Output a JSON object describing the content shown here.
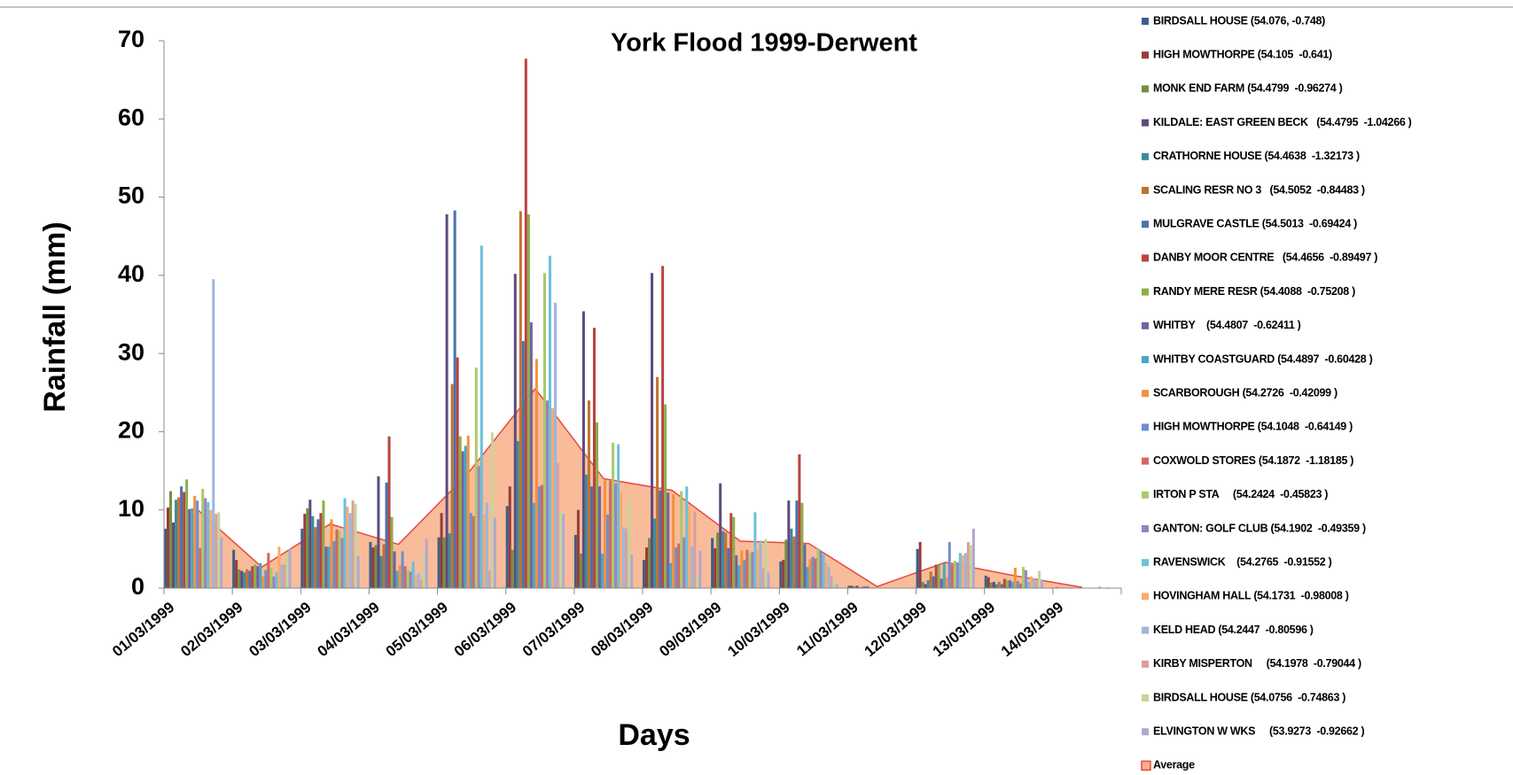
{
  "chart_data": {
    "type": "bar",
    "title": "York Flood 1999-Derwent",
    "x_label": "Days",
    "y_label": "Rainfall (mm)",
    "categories": [
      "01/03/1999",
      "02/03/1999",
      "03/03/1999",
      "04/03/1999",
      "05/03/1999",
      "06/03/1999",
      "07/03/1999",
      "08/03/1999",
      "09/03/1999",
      "10/03/1999",
      "11/03/1999",
      "12/03/1999",
      "13/03/1999",
      "14/03/1999"
    ],
    "ylim": [
      0,
      70
    ],
    "yticks": [
      0,
      10,
      20,
      30,
      40,
      50,
      60,
      70
    ],
    "grid": false,
    "legend": "right",
    "series": [
      {
        "name": "BIRDSALL HOUSE (54.076, -0.748)",
        "color": "#3E5F8A",
        "values": [
          7.6,
          4.9,
          7.6,
          5.9,
          6.5,
          10.5,
          6.8,
          3.6,
          6.4,
          3.4,
          0.3,
          5.0,
          1.6,
          0
        ]
      },
      {
        "name": "HIGH MOWTHORPE (54.105  -0.641)",
        "color": "#963C3A",
        "values": [
          10.3,
          3.6,
          9.5,
          5.2,
          9.6,
          13,
          10,
          5.2,
          5.1,
          3.6,
          0.3,
          5.9,
          1.4,
          0.1
        ]
      },
      {
        "name": "MONK END FARM (54.4799  -0.96274 )",
        "color": "#778F40",
        "values": [
          12.4,
          2.4,
          10.2,
          5.5,
          6.5,
          4.9,
          4.4,
          6.4,
          7.1,
          6.2,
          0.2,
          0.8,
          0.7,
          0
        ]
      },
      {
        "name": "KILDALE: EAST GREEN BECK   (54.4795  -1.04266 )",
        "color": "#5E4A7D",
        "values": [
          8.4,
          2.2,
          11.3,
          14.3,
          47.8,
          40.2,
          35.4,
          40.3,
          13.4,
          11.2,
          0.3,
          0.5,
          0.8,
          0
        ]
      },
      {
        "name": "CRATHORNE HOUSE (54.4638  -1.32173 )",
        "color": "#3A8BA0",
        "values": [
          11.3,
          2.0,
          9.2,
          4.1,
          7,
          18.8,
          14.5,
          8.9,
          7.3,
          7.6,
          0.1,
          1.0,
          0.5,
          0
        ]
      },
      {
        "name": "SCALING RESR NO 3   (54.5052  -0.84483 )",
        "color": "#C0722F",
        "values": [
          11.6,
          2.4,
          7.8,
          5.6,
          26.1,
          48.2,
          24,
          27,
          7.1,
          6.6,
          0.2,
          2.1,
          0.8,
          0
        ]
      },
      {
        "name": "MULGRAVE CASTLE (54.5013  -0.69424 )",
        "color": "#4A72B0",
        "values": [
          13,
          2.2,
          8.8,
          13.5,
          48.3,
          31.6,
          13,
          12.5,
          5.1,
          11.2,
          0.2,
          1.5,
          0.5,
          0
        ]
      },
      {
        "name": "DANBY MOOR CENTRE   (54.4656  -0.89497 )",
        "color": "#B84441",
        "values": [
          12.3,
          2.8,
          9.6,
          19.4,
          29.5,
          67.7,
          33.3,
          41.2,
          9.6,
          17.1,
          0.2,
          3.0,
          1.2,
          0
        ]
      },
      {
        "name": "RANDY MERE RESR (54.4088  -0.75208 )",
        "color": "#8DAE4B",
        "values": [
          13.9,
          3.0,
          11.2,
          9.1,
          19.4,
          47.8,
          21.2,
          23.5,
          9.1,
          10.9,
          0,
          2.9,
          1.0,
          0
        ]
      },
      {
        "name": "WHITBY    (54.4807  -0.62411 )",
        "color": "#7460A0",
        "values": [
          10.1,
          2.8,
          5.3,
          4.7,
          17.5,
          34,
          13,
          12.2,
          4.2,
          5.6,
          0,
          1.2,
          1.0,
          0
        ]
      },
      {
        "name": "WHITBY COASTGUARD (54.4897  -0.60428 )",
        "color": "#45A8C4",
        "values": [
          10.2,
          3.2,
          5.3,
          2.2,
          18.2,
          10.9,
          4.4,
          3.2,
          2.9,
          2.7,
          0,
          3.2,
          0.8,
          0
        ]
      },
      {
        "name": "SCARBOROUGH (54.2726  -0.42099 )",
        "color": "#F2913F",
        "values": [
          11.8,
          1.5,
          8.8,
          2.9,
          19.5,
          29.3,
          13.8,
          12,
          4.8,
          3.7,
          0,
          1.4,
          2.6,
          0
        ]
      },
      {
        "name": "HIGH MOWTHORPE (54.1048  -0.64149 )",
        "color": "#6C8FD0",
        "values": [
          11.2,
          2.3,
          6,
          4.7,
          9.6,
          13,
          9.4,
          5.2,
          3.6,
          4,
          0,
          5.9,
          0.9,
          0
        ]
      },
      {
        "name": "COXWOLD STORES (54.1872  -1.18185 )",
        "color": "#D06865",
        "values": [
          5.1,
          4.5,
          7.5,
          2.8,
          9.2,
          13.2,
          13.7,
          5.7,
          4.9,
          3.8,
          0,
          3.0,
          0.6,
          0
        ]
      },
      {
        "name": "IRTON P STA     (54.2424  -0.45823 )",
        "color": "#A9C96A",
        "values": [
          12.7,
          2.6,
          7.3,
          2.3,
          28.2,
          40.3,
          18.6,
          12.4,
          4.5,
          5.1,
          0,
          3.5,
          2.7,
          0
        ]
      },
      {
        "name": "GANTON: GOLF CLUB (54.1902  -0.49359 )",
        "color": "#9883BF",
        "values": [
          11.5,
          1.5,
          6.4,
          2.1,
          15.6,
          24,
          13.4,
          6.5,
          4.6,
          4.8,
          0,
          3.3,
          2.3,
          0
        ]
      },
      {
        "name": "RAVENSWICK    (54.2765  -0.91552 )",
        "color": "#6CC0DA",
        "values": [
          11,
          2.0,
          11.5,
          3.4,
          43.8,
          42.5,
          18.4,
          13,
          9.7,
          4.3,
          0,
          4.5,
          0.8,
          0
        ]
      },
      {
        "name": "HOVINGHAM HALL (54.1731  -0.98008 )",
        "color": "#F9AB6B",
        "values": [
          10,
          5.3,
          10.4,
          1.6,
          9.4,
          23,
          12.2,
          10.5,
          4.9,
          3.2,
          0,
          4.2,
          1.5,
          0.2
        ]
      },
      {
        "name": "KELD HEAD (54.2447  -0.80596 )",
        "color": "#9EB5DF",
        "values": [
          39.5,
          3,
          9.6,
          1.9,
          10.9,
          36.5,
          7.8,
          5.3,
          6.1,
          2.7,
          0,
          4.5,
          1.2,
          0
        ]
      },
      {
        "name": "KIRBY MISPERTON     (54.1978  -0.79044 )",
        "color": "#D9A09D",
        "values": [
          9.5,
          3,
          11.2,
          1.1,
          2.2,
          16,
          7.6,
          9.8,
          2.5,
          1.5,
          0,
          5.9,
          0.9,
          0
        ]
      },
      {
        "name": "BIRDSALL HOUSE (54.0756  -0.74863 )",
        "color": "#C2D69B",
        "values": [
          9.7,
          4.5,
          10.8,
          4.5,
          19.9,
          9.7,
          11.1,
          1.6,
          6.3,
          1,
          0,
          5.5,
          2.2,
          0.1
        ]
      },
      {
        "name": "ELVINGTON W WKS     (53.9273  -0.92662 )",
        "color": "#B5A6CF",
        "values": [
          6.5,
          5.0,
          4.1,
          6.3,
          9,
          9.5,
          4.3,
          4.8,
          2,
          0.5,
          0,
          7.6,
          1.1,
          0
        ]
      },
      {
        "name": "Average",
        "type": "area",
        "color": "#F7B08A",
        "line_color": "#E8473E",
        "values": [
          10.5,
          2.7,
          8.2,
          5.6,
          14.5,
          25.5,
          14,
          12.5,
          6,
          5.7,
          0.2,
          3.3,
          1.6,
          0.1
        ]
      }
    ]
  }
}
